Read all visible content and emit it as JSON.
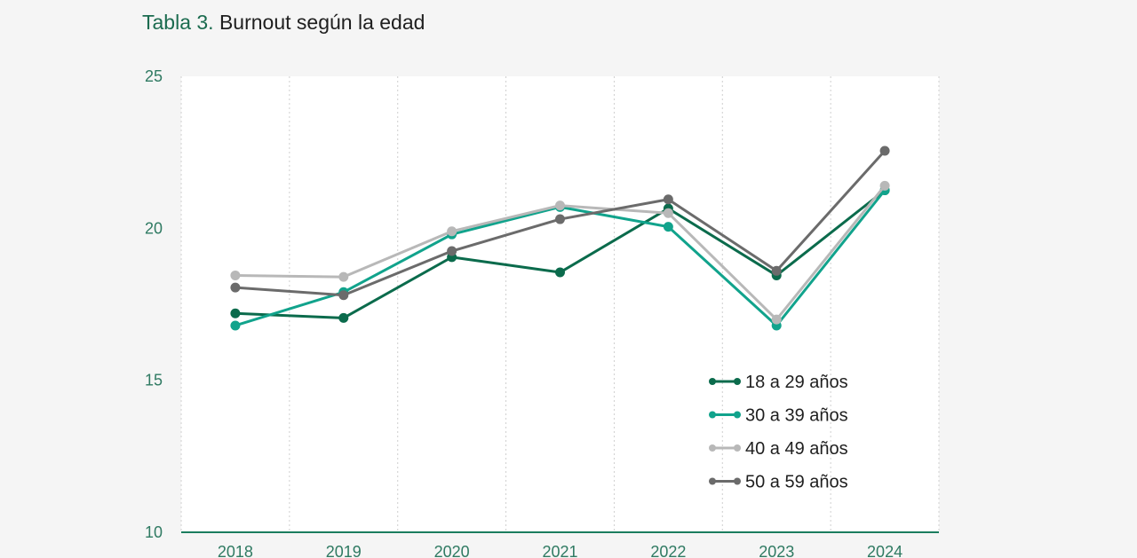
{
  "title": {
    "lead": "Tabla 3.",
    "rest": " Burnout según la edad"
  },
  "chart_data": {
    "type": "line",
    "title": "Tabla 3. Burnout según la edad",
    "xlabel": "",
    "ylabel": "",
    "x": [
      "2018",
      "2019",
      "2020",
      "2021",
      "2022",
      "2023",
      "2024"
    ],
    "ylim": [
      10,
      25
    ],
    "yticks": [
      10,
      15,
      20,
      25
    ],
    "grid": {
      "vertical": true,
      "style": "dotted",
      "horizontal": false
    },
    "legend_position": "lower-right",
    "series": [
      {
        "name": "18 a 29 años",
        "color": "#0b6b4c",
        "values": [
          17.2,
          17.05,
          19.05,
          18.55,
          20.65,
          18.45,
          21.25
        ]
      },
      {
        "name": "30 a 39 años",
        "color": "#11a38c",
        "values": [
          16.8,
          17.9,
          19.8,
          20.7,
          20.05,
          16.8,
          21.25
        ]
      },
      {
        "name": "40 a 49 años",
        "color": "#b8b8b8",
        "values": [
          18.45,
          18.4,
          19.9,
          20.75,
          20.5,
          17.0,
          21.4
        ]
      },
      {
        "name": "50 a 59 años",
        "color": "#6b6b6b",
        "values": [
          18.05,
          17.8,
          19.25,
          20.3,
          20.95,
          18.6,
          22.55
        ]
      }
    ]
  }
}
